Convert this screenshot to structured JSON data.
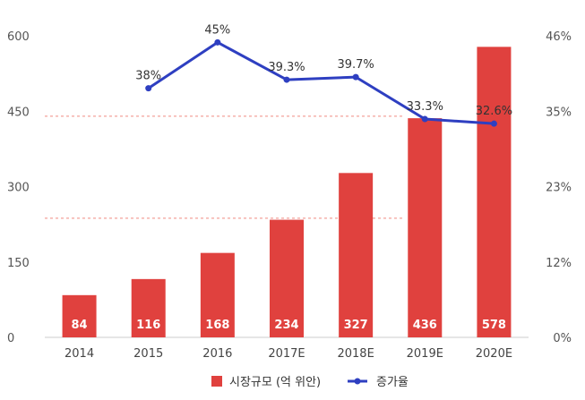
{
  "chart_data": {
    "type": "bar",
    "categories": [
      "2014",
      "2015",
      "2016",
      "2017E",
      "2018E",
      "2019E",
      "2020E"
    ],
    "series": [
      {
        "name": "시장규모 (억 위안)",
        "type": "bar",
        "axis": "left",
        "values": [
          84,
          116,
          168,
          234,
          327,
          436,
          578
        ],
        "labels": [
          "84",
          "116",
          "168",
          "234",
          "327",
          "436",
          "578"
        ],
        "color": "#e0413e"
      },
      {
        "name": "증가율",
        "type": "line",
        "axis": "right",
        "values": [
          null,
          38,
          45,
          39.3,
          39.7,
          33.3,
          32.6
        ],
        "labels": [
          null,
          "38%",
          "45%",
          "39.3%",
          "39.7%",
          "33.3%",
          "32.6%"
        ],
        "color": "#2e3fc1"
      }
    ],
    "y_left": {
      "ticks": [
        "0",
        "150",
        "300",
        "450",
        "600"
      ],
      "lim": [
        0,
        600
      ]
    },
    "y_right": {
      "ticks": [
        "0%",
        "12%",
        "23%",
        "35%",
        "46%"
      ],
      "lim": [
        0,
        46
      ]
    },
    "reference_lines": [
      {
        "value": 440,
        "color": "#f08a80"
      },
      {
        "value": 237,
        "color": "#f08a80"
      }
    ],
    "legend": {
      "position": "bottom"
    },
    "grid": false
  }
}
